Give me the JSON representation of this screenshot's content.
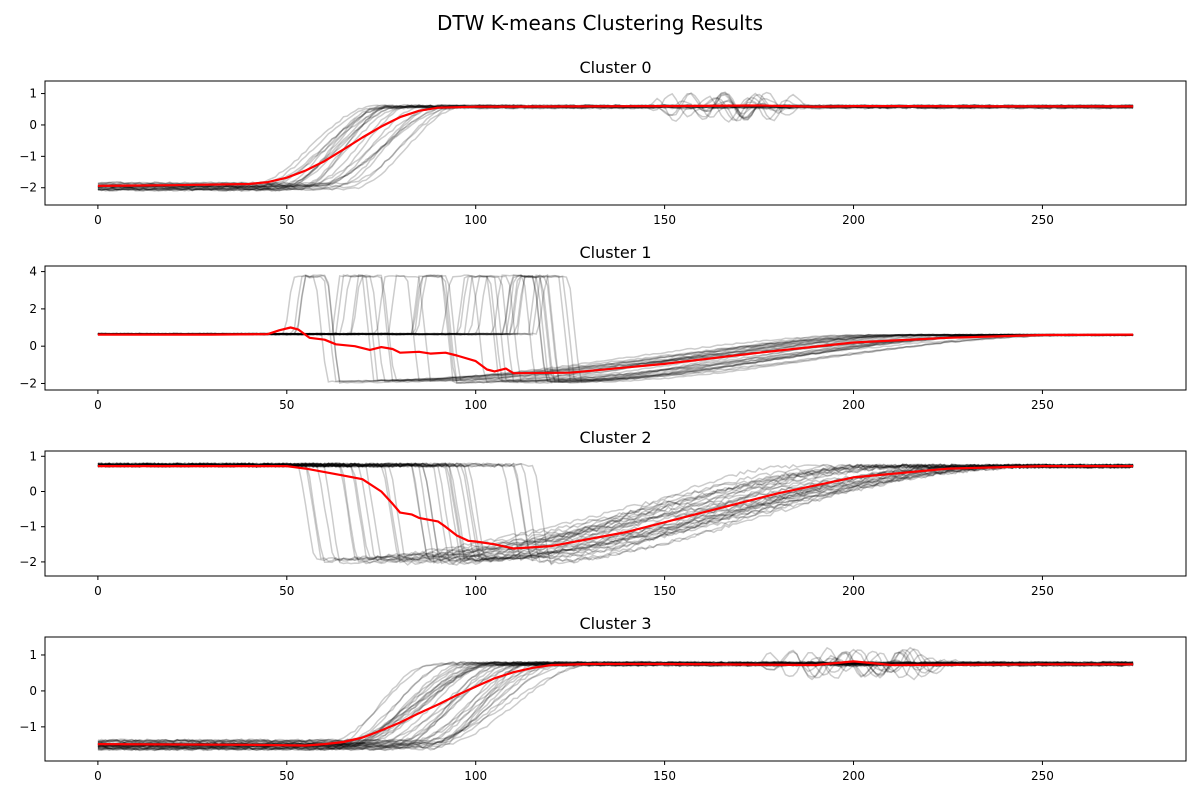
{
  "figure": {
    "title": "DTW K-means Clustering Results"
  },
  "chart_data": [
    {
      "type": "line",
      "title": "Cluster 0",
      "xlim": [
        -14,
        288
      ],
      "ylim": [
        -2.55,
        1.4
      ],
      "xticks": [
        0,
        50,
        100,
        150,
        200,
        250
      ],
      "yticks": [
        -2,
        -1,
        0,
        1
      ],
      "x_max": 274,
      "member_color": "#000000",
      "member_opacity": 0.2,
      "n_members": 26,
      "members_profile": {
        "kind": "rise",
        "start_level": -1.95,
        "end_level": 0.58,
        "transition_start_range": [
          40,
          68
        ],
        "transition_width_range": [
          22,
          38
        ],
        "oscillation": {
          "x_range": [
            142,
            192
          ],
          "amplitude": 0.45
        }
      },
      "centroid": {
        "color": "#ff0000",
        "x": [
          0,
          20,
          40,
          45,
          50,
          55,
          60,
          65,
          70,
          75,
          80,
          85,
          90,
          100,
          150,
          175,
          190,
          200,
          250,
          274
        ],
        "y": [
          -1.94,
          -1.92,
          -1.88,
          -1.82,
          -1.68,
          -1.45,
          -1.15,
          -0.78,
          -0.4,
          -0.05,
          0.25,
          0.45,
          0.55,
          0.58,
          0.6,
          0.62,
          0.58,
          0.6,
          0.59,
          0.59
        ]
      }
    },
    {
      "type": "line",
      "title": "Cluster 1",
      "xlim": [
        -14,
        288
      ],
      "ylim": [
        -2.35,
        4.3
      ],
      "xticks": [
        0,
        50,
        100,
        150,
        200,
        250
      ],
      "yticks": [
        -2,
        0,
        2,
        4
      ],
      "x_max": 274,
      "member_color": "#000000",
      "member_opacity": 0.2,
      "n_members": 32,
      "members_profile": {
        "kind": "spike_drop_recover",
        "base_level": 0.65,
        "spike_level": 3.8,
        "spike_start_range": [
          46,
          118
        ],
        "spike_width": 6,
        "low_level": -1.9,
        "recover_end_range": [
          200,
          265
        ],
        "end_level": 0.6
      },
      "centroid": {
        "color": "#ff0000",
        "x": [
          0,
          30,
          45,
          48,
          51,
          53,
          56,
          60,
          63,
          68,
          72,
          75,
          78,
          80,
          85,
          88,
          92,
          95,
          100,
          103,
          105,
          108,
          110,
          125,
          150,
          175,
          200,
          225,
          250,
          274
        ],
        "y": [
          0.62,
          0.62,
          0.65,
          0.85,
          1.0,
          0.9,
          0.45,
          0.35,
          0.1,
          0.0,
          -0.2,
          -0.05,
          -0.15,
          -0.35,
          -0.3,
          -0.4,
          -0.35,
          -0.5,
          -0.8,
          -1.25,
          -1.35,
          -1.2,
          -1.45,
          -1.42,
          -0.95,
          -0.35,
          0.2,
          0.45,
          0.6,
          0.62
        ]
      }
    },
    {
      "type": "line",
      "title": "Cluster 2",
      "xlim": [
        -14,
        288
      ],
      "ylim": [
        -2.4,
        1.15
      ],
      "xticks": [
        0,
        50,
        100,
        150,
        200,
        250
      ],
      "yticks": [
        -2,
        -1,
        0,
        1
      ],
      "x_max": 274,
      "member_color": "#000000",
      "member_opacity": 0.2,
      "n_members": 34,
      "members_profile": {
        "kind": "drop_recover",
        "start_level": 0.75,
        "drop_start_range": [
          52,
          118
        ],
        "drop_width": 4,
        "low_level": -1.95,
        "recover_end_range": [
          185,
          255
        ],
        "end_level": 0.72
      },
      "centroid": {
        "color": "#ff0000",
        "x": [
          0,
          50,
          55,
          60,
          65,
          70,
          75,
          78,
          80,
          83,
          85,
          90,
          92,
          95,
          98,
          100,
          105,
          110,
          120,
          140,
          160,
          180,
          200,
          225,
          250,
          274
        ],
        "y": [
          0.72,
          0.72,
          0.65,
          0.55,
          0.45,
          0.35,
          0.0,
          -0.35,
          -0.6,
          -0.65,
          -0.75,
          -0.85,
          -1.0,
          -1.25,
          -1.4,
          -1.42,
          -1.5,
          -1.62,
          -1.55,
          -1.15,
          -0.6,
          -0.05,
          0.4,
          0.65,
          0.72,
          0.72
        ]
      }
    },
    {
      "type": "line",
      "title": "Cluster 3",
      "xlim": [
        -14,
        288
      ],
      "ylim": [
        -1.95,
        1.5
      ],
      "xticks": [
        0,
        50,
        100,
        150,
        200,
        250
      ],
      "yticks": [
        -1,
        0,
        1
      ],
      "x_max": 274,
      "member_color": "#000000",
      "member_opacity": 0.2,
      "n_members": 40,
      "members_profile": {
        "kind": "rise",
        "start_level": -1.5,
        "end_level": 0.75,
        "transition_start_range": [
          60,
          90
        ],
        "transition_width_range": [
          25,
          45
        ],
        "oscillation": {
          "x_range": [
            172,
            230
          ],
          "amplitude": 0.4
        }
      },
      "centroid": {
        "color": "#ff0000",
        "x": [
          0,
          40,
          55,
          60,
          65,
          70,
          75,
          80,
          85,
          90,
          95,
          100,
          105,
          110,
          115,
          120,
          130,
          150,
          190,
          200,
          210,
          250,
          274
        ],
        "y": [
          -1.48,
          -1.5,
          -1.52,
          -1.48,
          -1.42,
          -1.3,
          -1.1,
          -0.88,
          -0.62,
          -0.38,
          -0.12,
          0.12,
          0.35,
          0.52,
          0.64,
          0.72,
          0.75,
          0.75,
          0.72,
          0.82,
          0.72,
          0.74,
          0.74
        ]
      }
    }
  ]
}
